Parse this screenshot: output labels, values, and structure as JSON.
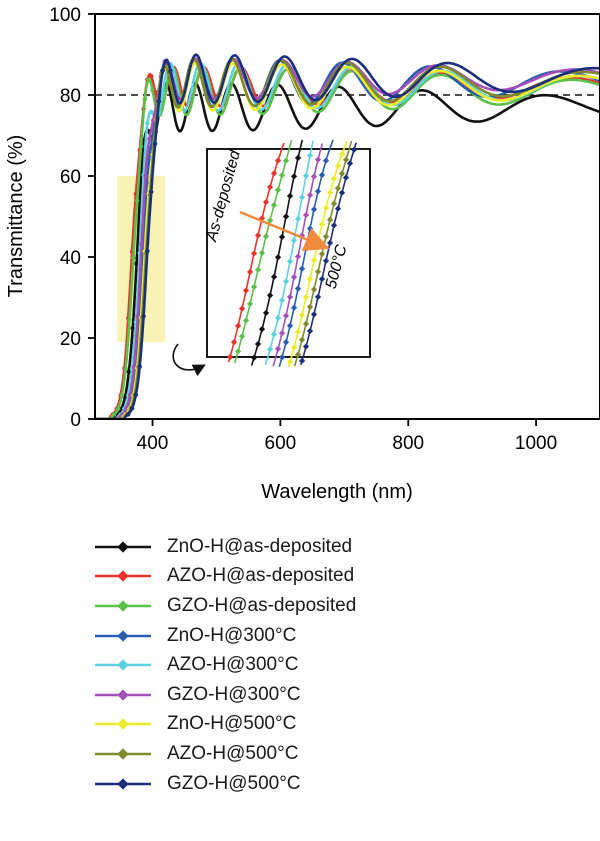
{
  "chart_data": {
    "type": "line",
    "title": "",
    "xlabel": "Wavelength (nm)",
    "ylabel": "Transmittance (%)",
    "xlim": [
      310,
      1100
    ],
    "ylim": [
      0,
      100
    ],
    "xticks": [
      400,
      600,
      800,
      1000
    ],
    "yticks": [
      0,
      20,
      40,
      60,
      80,
      100
    ],
    "xtick_labels": [
      "400",
      "600",
      "800",
      "1000"
    ],
    "ytick_labels": [
      "0",
      "20",
      "40",
      "60",
      "80",
      "100"
    ],
    "reference_line": {
      "y": 80,
      "style": "dashed"
    },
    "highlight_region": {
      "x": [
        345,
        420
      ],
      "y": [
        19,
        60
      ],
      "color": "#f7f0a8"
    },
    "inset": {
      "label_start": "As-deposited",
      "label_end": "500°C",
      "arrow_color": "#f08a3c"
    },
    "legend_position": "bottom",
    "series": [
      {
        "name": "ZnO-H@as-deposited",
        "color": "#111111",
        "marker": "square",
        "edge": 375,
        "plateau": 77,
        "amp": 6,
        "period": 0.95,
        "phase": 0.0
      },
      {
        "name": "AZO-H@as-deposited",
        "color": "#e8332a",
        "marker": "circle",
        "edge": 368,
        "plateau": 82,
        "amp": 5,
        "period": 0.97,
        "phase": 0.4
      },
      {
        "name": "GZO-H@as-deposited",
        "color": "#5cbf4a",
        "marker": "triangle-up",
        "edge": 370,
        "plateau": 81,
        "amp": 6,
        "period": 0.96,
        "phase": 0.8
      },
      {
        "name": "ZnO-H@300°C",
        "color": "#2a5db0",
        "marker": "triangle-down",
        "edge": 385,
        "plateau": 83,
        "amp": 6,
        "period": 0.93,
        "phase": 1.2
      },
      {
        "name": "AZO-H@300°C",
        "color": "#5fd0e0",
        "marker": "diamond",
        "edge": 380,
        "plateau": 82,
        "amp": 6,
        "period": 0.94,
        "phase": 1.6
      },
      {
        "name": "GZO-H@300°C",
        "color": "#a54fb8",
        "marker": "triangle-left",
        "edge": 383,
        "plateau": 84,
        "amp": 5,
        "period": 0.92,
        "phase": 2.0
      },
      {
        "name": "ZnO-H@500°C",
        "color": "#ecec2a",
        "marker": "triangle-right",
        "edge": 388,
        "plateau": 82,
        "amp": 6,
        "period": 0.91,
        "phase": 2.4
      },
      {
        "name": "AZO-H@500°C",
        "color": "#7e8a2c",
        "marker": "circle",
        "edge": 390,
        "plateau": 83,
        "amp": 6,
        "period": 0.9,
        "phase": 2.8
      },
      {
        "name": "GZO-H@500°C",
        "color": "#1b2f7a",
        "marker": "star",
        "edge": 392,
        "plateau": 84,
        "amp": 6,
        "period": 0.9,
        "phase": 3.2
      }
    ]
  }
}
